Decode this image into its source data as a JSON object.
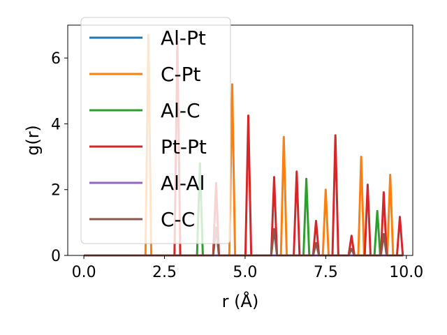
{
  "chart_data": {
    "type": "line",
    "xlabel": "r (Å)",
    "ylabel": "g(r)",
    "xlim": [
      -0.5,
      10.2
    ],
    "ylim": [
      0,
      7
    ],
    "xticks": [
      0.0,
      2.5,
      5.0,
      7.5,
      10.0
    ],
    "xtick_labels": [
      "0.0",
      "2.5",
      "5.0",
      "7.5",
      "10.0"
    ],
    "yticks": [
      0,
      2,
      4,
      6
    ],
    "ytick_labels": [
      "0",
      "2",
      "4",
      "6"
    ],
    "grid": false,
    "legend_position": "upper-left",
    "series": [
      {
        "name": "Al-Pt",
        "color": "#1f77b4",
        "peaks": []
      },
      {
        "name": "C-Pt",
        "color": "#ff7f0e",
        "peaks": [
          [
            2.0,
            6.7
          ],
          [
            4.6,
            5.2
          ],
          [
            6.2,
            3.6
          ],
          [
            7.5,
            2.0
          ],
          [
            8.6,
            3.0
          ],
          [
            9.5,
            2.45
          ]
        ]
      },
      {
        "name": "Al-C",
        "color": "#2ca02c",
        "peaks": [
          [
            3.6,
            2.8
          ],
          [
            6.9,
            2.33
          ],
          [
            9.1,
            1.35
          ]
        ]
      },
      {
        "name": "Pt-Pt",
        "color": "#d62728",
        "peaks": [
          [
            2.9,
            6.5
          ],
          [
            4.1,
            2.2
          ],
          [
            5.1,
            4.25
          ],
          [
            5.9,
            2.38
          ],
          [
            6.6,
            2.55
          ],
          [
            7.2,
            1.05
          ],
          [
            7.8,
            3.65
          ],
          [
            8.3,
            0.6
          ],
          [
            8.8,
            2.15
          ],
          [
            9.3,
            1.92
          ],
          [
            9.8,
            1.17
          ]
        ]
      },
      {
        "name": "Al-Al",
        "color": "#9467bd",
        "peaks": []
      },
      {
        "name": "C-C",
        "color": "#8c564b",
        "peaks": [
          [
            4.1,
            0.85
          ],
          [
            5.9,
            0.8
          ],
          [
            7.2,
            0.38
          ],
          [
            8.3,
            0.2
          ],
          [
            9.3,
            0.65
          ]
        ]
      }
    ]
  }
}
